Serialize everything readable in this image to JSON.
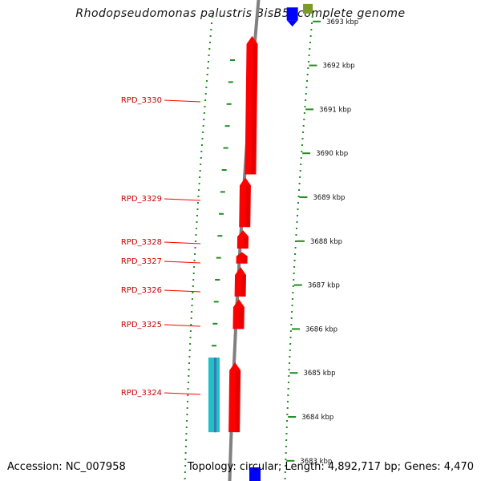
{
  "title": "Rhodopseudomonas palustris BisB5, complete genome",
  "footer": {
    "accession": "Accession: NC_007958",
    "topology": "Topology: circular; Length: 4,892,717 bp; Genes: 4,470"
  },
  "colors": {
    "gene": "#ff0000",
    "gene_label": "#cc0000",
    "backbone": "#808080",
    "ticks": "#228b22",
    "blue_feature": "#0000ff",
    "green_feature": "#7a9a2a",
    "cyan_feature": "#20c0c8"
  },
  "scale": {
    "unit": "kbp",
    "ticks": [
      {
        "kbp": 3693,
        "label": "3693 kbp"
      },
      {
        "kbp": 3692,
        "label": "3692 kbp"
      },
      {
        "kbp": 3691,
        "label": "3691 kbp"
      },
      {
        "kbp": 3690,
        "label": "3690 kbp"
      },
      {
        "kbp": 3689,
        "label": "3689 kbp"
      },
      {
        "kbp": 3688,
        "label": "3688 kbp"
      },
      {
        "kbp": 3687,
        "label": "3687 kbp"
      },
      {
        "kbp": 3686,
        "label": "3686 kbp"
      },
      {
        "kbp": 3685,
        "label": "3685 kbp"
      },
      {
        "kbp": 3684,
        "label": "3684 kbp"
      },
      {
        "kbp": 3683,
        "label": "3683 kbp"
      }
    ]
  },
  "genes": [
    {
      "name": "RPD_3330",
      "start_kbp": 3689.52,
      "end_kbp": 3692.67,
      "strand": "-"
    },
    {
      "name": "RPD_3329",
      "start_kbp": 3688.32,
      "end_kbp": 3689.45,
      "strand": "-"
    },
    {
      "name": "RPD_3328",
      "start_kbp": 3687.83,
      "end_kbp": 3688.25,
      "strand": "-"
    },
    {
      "name": "RPD_3327",
      "start_kbp": 3687.49,
      "end_kbp": 3687.75,
      "strand": "-"
    },
    {
      "name": "RPD_3326",
      "start_kbp": 3686.74,
      "end_kbp": 3687.41,
      "strand": "-"
    },
    {
      "name": "RPD_3325",
      "start_kbp": 3686.0,
      "end_kbp": 3686.68,
      "strand": "-"
    },
    {
      "name": "RPD_3324",
      "start_kbp": 3683.65,
      "end_kbp": 3685.24,
      "strand": "-"
    }
  ],
  "other_features": [
    {
      "kind": "blue",
      "start_kbp": 3693.03,
      "end_kbp": 3693.32,
      "strand": "+"
    },
    {
      "kind": "green",
      "start_kbp": 3693.18,
      "end_kbp": 3693.4,
      "strand": "+"
    },
    {
      "kind": "blue",
      "start_kbp": 3682.5,
      "end_kbp": 3682.85,
      "strand": "+"
    },
    {
      "kind": "cyan",
      "start_kbp": 3683.65,
      "end_kbp": 3685.35,
      "strand": "-"
    }
  ]
}
